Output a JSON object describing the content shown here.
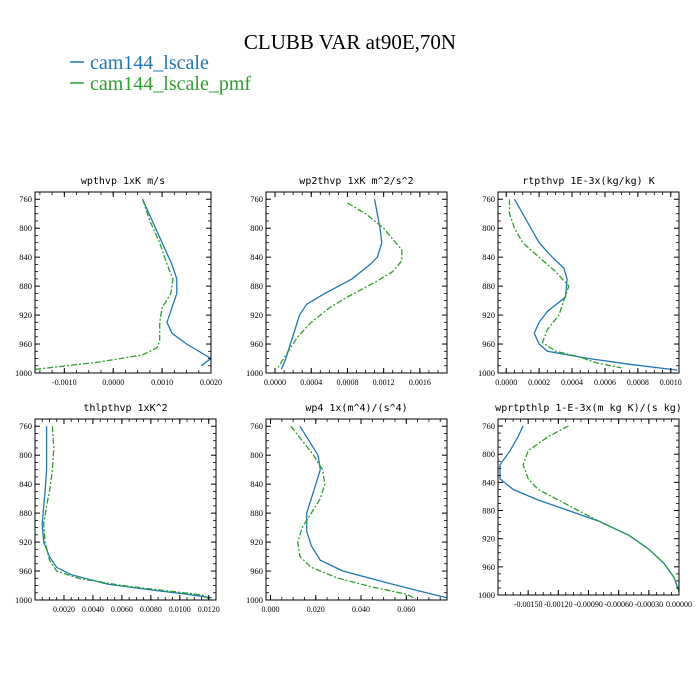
{
  "figure": {
    "title": "CLUBB VAR at90E,70N",
    "colors": {
      "series1": "#1f77b4",
      "series2": "#2ca02c"
    },
    "legend": [
      {
        "label": "cam144_lscale",
        "color": "#1f77b4",
        "dash": false
      },
      {
        "label": "cam144_lscale_pmf",
        "color": "#2ca02c",
        "dash": true
      }
    ]
  },
  "chart_data": [
    {
      "type": "line",
      "title": "wpthvp  1xK m/s",
      "xlim": [
        -0.0016,
        0.002
      ],
      "ylim": [
        1000,
        750
      ],
      "xticks": [
        -0.001,
        0.0,
        0.001,
        0.002
      ],
      "xticklabels": [
        "-0.0010",
        "0.0000",
        "0.0010",
        "0.0020"
      ],
      "yticks": [
        760,
        800,
        840,
        880,
        920,
        960,
        1000
      ],
      "series": [
        {
          "name": "cam144_lscale",
          "x": [
            0.0006,
            0.0008,
            0.001,
            0.0012,
            0.0013,
            0.0013,
            0.0012,
            0.0011,
            0.0012,
            0.0015,
            0.002,
            0.0018
          ],
          "y": [
            760,
            790,
            820,
            850,
            870,
            890,
            910,
            930,
            945,
            960,
            980,
            990
          ]
        },
        {
          "name": "cam144_lscale_pmf",
          "x": [
            0.0006,
            0.00075,
            0.00095,
            0.0011,
            0.00122,
            0.00118,
            0.001,
            0.00095,
            0.00095,
            0.0009,
            0.0006,
            -0.0003,
            -0.0016
          ],
          "y": [
            760,
            790,
            820,
            850,
            870,
            890,
            910,
            930,
            955,
            965,
            975,
            985,
            995
          ]
        }
      ]
    },
    {
      "type": "line",
      "title": "wp2thvp  1xK m^2/s^2",
      "xlim": [
        -0.0001,
        0.0019
      ],
      "ylim": [
        1000,
        750
      ],
      "xticks": [
        0.0,
        0.0004,
        0.0008,
        0.0012,
        0.0016
      ],
      "xticklabels": [
        "0.0000",
        "0.0004",
        "0.0008",
        "0.0012",
        "0.0016"
      ],
      "yticks": [
        760,
        800,
        840,
        880,
        920,
        960,
        1000
      ],
      "series": [
        {
          "name": "cam144_lscale",
          "x": [
            0.0011,
            0.00113,
            0.00116,
            0.00118,
            0.00113,
            0.00105,
            0.00085,
            0.00055,
            0.00035,
            0.00027,
            0.00022,
            0.00017,
            0.00012,
            7e-05
          ],
          "y": [
            760,
            780,
            800,
            820,
            840,
            850,
            870,
            890,
            905,
            920,
            940,
            960,
            980,
            995
          ]
        },
        {
          "name": "cam144_lscale_pmf",
          "x": [
            0.0008,
            0.001,
            0.0012,
            0.0013,
            0.0014,
            0.0014,
            0.0013,
            0.0011,
            0.0008,
            0.0006,
            0.0004,
            0.00025,
            0.00012,
            2e-05
          ],
          "y": [
            765,
            780,
            800,
            815,
            830,
            845,
            860,
            875,
            895,
            910,
            930,
            950,
            975,
            995
          ]
        }
      ]
    },
    {
      "type": "line",
      "title": "rtpthvp  1E-3x(kg/kg) K",
      "xlim": [
        -5e-05,
        0.00105
      ],
      "ylim": [
        1000,
        750
      ],
      "xticks": [
        0.0,
        0.0002,
        0.0004,
        0.0006,
        0.0008,
        0.001
      ],
      "xticklabels": [
        "0.0000",
        "0.0002",
        "0.0004",
        "0.0006",
        "0.0008",
        "0.0010"
      ],
      "yticks": [
        760,
        800,
        840,
        880,
        920,
        960,
        1000
      ],
      "series": [
        {
          "name": "cam144_lscale",
          "x": [
            5e-05,
            0.0001,
            0.00015,
            0.0002,
            0.00028,
            0.00035,
            0.00037,
            0.00036,
            0.00025,
            0.0002,
            0.00017,
            0.0002,
            0.00025,
            0.0005,
            0.00075,
            0.00104
          ],
          "y": [
            760,
            780,
            800,
            820,
            840,
            855,
            870,
            895,
            915,
            930,
            945,
            960,
            970,
            980,
            988,
            996
          ]
        },
        {
          "name": "cam144_lscale_pmf",
          "x": [
            2e-05,
            2e-05,
            5e-05,
            0.0001,
            0.0002,
            0.0003,
            0.00038,
            0.00035,
            0.00032,
            0.00025,
            0.00022,
            0.0003,
            0.00045,
            0.00055,
            0.0007
          ],
          "y": [
            760,
            780,
            800,
            820,
            840,
            860,
            880,
            900,
            920,
            940,
            958,
            970,
            978,
            986,
            993
          ]
        }
      ]
    },
    {
      "type": "line",
      "title": "thlpthvp  1xK^2",
      "xlim": [
        0.0,
        0.0125
      ],
      "ylim": [
        1000,
        750
      ],
      "xticks": [
        0.002,
        0.004,
        0.006,
        0.008,
        0.01,
        0.012
      ],
      "xticklabels": [
        "0.0020",
        "0.0040",
        "0.0060",
        "0.0080",
        "0.0100",
        "0.0120"
      ],
      "yticks": [
        760,
        800,
        840,
        880,
        920,
        960,
        1000
      ],
      "series": [
        {
          "name": "cam144_lscale",
          "x": [
            0.0008,
            0.0008,
            0.0008,
            0.0007,
            0.0006,
            0.0005,
            0.0006,
            0.001,
            0.0015,
            0.0025,
            0.005,
            0.008,
            0.0105,
            0.0122
          ],
          "y": [
            760,
            790,
            820,
            850,
            870,
            895,
            920,
            940,
            955,
            965,
            978,
            986,
            992,
            997
          ]
        },
        {
          "name": "cam144_lscale_pmf",
          "x": [
            0.0012,
            0.0013,
            0.0012,
            0.001,
            0.0008,
            0.0006,
            0.0007,
            0.001,
            0.0015,
            0.003,
            0.006,
            0.009,
            0.0115,
            0.012
          ],
          "y": [
            760,
            790,
            820,
            850,
            870,
            895,
            920,
            945,
            960,
            970,
            980,
            987,
            993,
            998
          ]
        }
      ]
    },
    {
      "type": "line",
      "title": "wp4  1x(m^4)/(s^4)",
      "xlim": [
        -0.002,
        0.078
      ],
      "ylim": [
        1000,
        750
      ],
      "xticks": [
        0.0,
        0.02,
        0.04,
        0.06
      ],
      "xticklabels": [
        "0.000",
        "0.020",
        "0.040",
        "0.060"
      ],
      "yticks": [
        760,
        800,
        840,
        880,
        920,
        960,
        1000
      ],
      "series": [
        {
          "name": "cam144_lscale",
          "x": [
            0.013,
            0.017,
            0.021,
            0.022,
            0.02,
            0.018,
            0.016,
            0.016,
            0.018,
            0.022,
            0.032,
            0.05,
            0.065,
            0.078
          ],
          "y": [
            760,
            780,
            800,
            820,
            840,
            860,
            880,
            905,
            925,
            945,
            960,
            975,
            987,
            997
          ]
        },
        {
          "name": "cam144_lscale_pmf",
          "x": [
            0.009,
            0.014,
            0.019,
            0.023,
            0.024,
            0.022,
            0.018,
            0.014,
            0.012,
            0.013,
            0.018,
            0.03,
            0.045,
            0.06,
            0.064
          ],
          "y": [
            760,
            780,
            800,
            820,
            840,
            860,
            880,
            900,
            920,
            940,
            955,
            970,
            982,
            992,
            998
          ]
        }
      ]
    },
    {
      "type": "line",
      "title": "wprtpthlp  1-E-3x(m kg K)/(s kg)",
      "xlim": [
        -0.0018,
        0.0
      ],
      "ylim": [
        1000,
        750
      ],
      "xticks": [
        -0.0015,
        -0.0012,
        -0.0009,
        -0.0006,
        -0.0003,
        0.0
      ],
      "xticklabels": [
        "-0.00150",
        "-0.00120",
        "-0.00090",
        "-0.00060",
        "-0.00030",
        "0.00000"
      ],
      "yticks": [
        760,
        800,
        840,
        880,
        920,
        960,
        1000
      ],
      "series": [
        {
          "name": "cam144_lscale",
          "x": [
            -0.00155,
            -0.0016,
            -0.00168,
            -0.00178,
            -0.00178,
            -0.00165,
            -0.0014,
            -0.0011,
            -0.0008,
            -0.0005,
            -0.0003,
            -0.00015,
            -5e-05,
            0.0
          ],
          "y": [
            760,
            775,
            795,
            815,
            835,
            850,
            865,
            880,
            895,
            915,
            935,
            955,
            975,
            995
          ]
        },
        {
          "name": "cam144_lscale_pmf",
          "x": [
            -0.0011,
            -0.0013,
            -0.0015,
            -0.00155,
            -0.0015,
            -0.0014,
            -0.0012,
            -0.001,
            -0.0008,
            -0.0005,
            -0.0003,
            -0.00015,
            -5e-05,
            0.0
          ],
          "y": [
            760,
            775,
            795,
            815,
            835,
            850,
            865,
            880,
            895,
            915,
            935,
            955,
            975,
            995
          ]
        }
      ]
    }
  ]
}
